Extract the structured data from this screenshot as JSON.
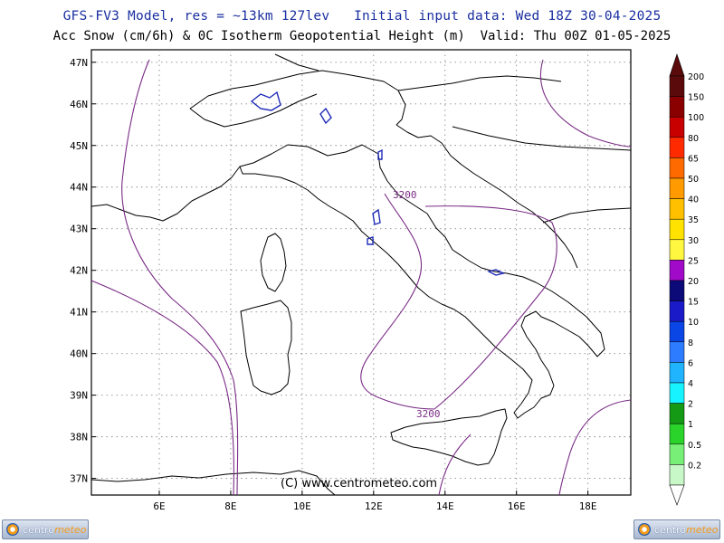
{
  "header": {
    "line1": "GFS-FV3 Model, res = ~13km 127lev   Initial input data: Wed 18Z 30-04-2025",
    "line2": "Acc Snow (cm/6h) & 0C Isotherm Geopotential Height (m)  Valid: Thu 00Z 01-05-2025"
  },
  "map": {
    "lat_labels": [
      "47N",
      "46N",
      "45N",
      "44N",
      "43N",
      "42N",
      "41N",
      "40N",
      "39N",
      "38N",
      "37N"
    ],
    "lon_labels": [
      "6E",
      "8E",
      "10E",
      "12E",
      "14E",
      "16E",
      "18E"
    ],
    "lat_range": [
      36.6,
      47.3
    ],
    "lon_range": [
      4.1,
      19.2
    ],
    "contour_labels": [
      "3200",
      "3200"
    ],
    "copyright": "(C) www.centrometeo.com",
    "colors": {
      "coast": "#000000",
      "isotherm": "#7a2c86",
      "snow": "#1f2bb8",
      "grid": "#8a8a8a"
    }
  },
  "legend": {
    "levels": [
      "200",
      "150",
      "100",
      "80",
      "65",
      "50",
      "40",
      "35",
      "30",
      "25",
      "20",
      "15",
      "10",
      "8",
      "6",
      "4",
      "2",
      "1",
      "0.5",
      "0.2"
    ],
    "colors": [
      "#5a0a0a",
      "#8a0000",
      "#c80000",
      "#ff2a00",
      "#ff6a00",
      "#ff9a00",
      "#ffc000",
      "#ffe200",
      "#fff740",
      "#a10ac8",
      "#0c0a78",
      "#1a1ac8",
      "#0a46e6",
      "#2d7cff",
      "#20b4ff",
      "#18f4ff",
      "#149a14",
      "#2ad42a",
      "#78f078",
      "#c8f8c8"
    ]
  },
  "footer": {
    "logo_left": {
      "part1": "centro",
      "part2": "meteo"
    },
    "logo_right": {
      "part1": "centro",
      "part2": "meteo"
    }
  }
}
